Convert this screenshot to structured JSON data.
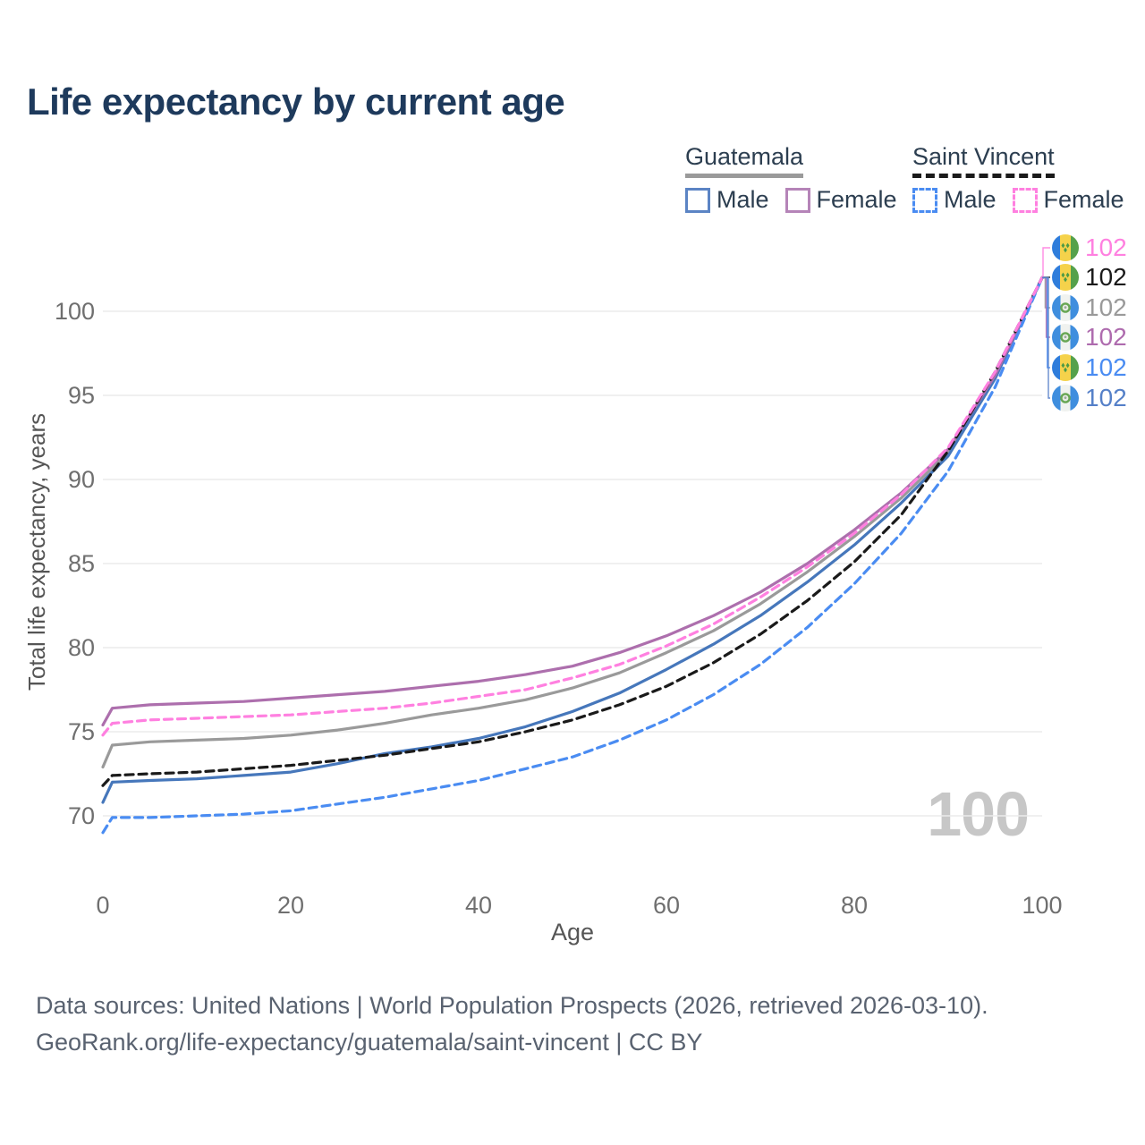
{
  "title": "Life expectancy by current age",
  "watermark": "100",
  "legend": {
    "groups": [
      {
        "name": "Guatemala",
        "line_style": "solid",
        "line_color": "#9a9a9a",
        "items": [
          {
            "label": "Male",
            "color": "#5b84c4",
            "dash": false
          },
          {
            "label": "Female",
            "color": "#b584b8",
            "dash": false
          }
        ]
      },
      {
        "name": "Saint Vincent",
        "line_style": "dashed",
        "line_color": "#1a1a1a",
        "items": [
          {
            "label": "Male",
            "color": "#4a8cf2",
            "dash": true
          },
          {
            "label": "Female",
            "color": "#ff80e0",
            "dash": true
          }
        ]
      }
    ]
  },
  "chart_data": {
    "type": "line",
    "title": "Life expectancy by current age",
    "xlabel": "Age",
    "ylabel": "Total life expectancy, years",
    "x_ticks": [
      0,
      20,
      40,
      60,
      80,
      100
    ],
    "y_ticks": [
      70,
      75,
      80,
      85,
      90,
      95,
      100
    ],
    "xlim": [
      0,
      100
    ],
    "ylim": [
      68.5,
      103
    ],
    "grid": "horizontal-only",
    "legend_position": "top-right",
    "x": [
      0,
      1,
      5,
      10,
      15,
      20,
      25,
      30,
      35,
      40,
      45,
      50,
      55,
      60,
      65,
      70,
      75,
      80,
      85,
      90,
      95,
      100
    ],
    "series": [
      {
        "name": "Guatemala",
        "country": "Guatemala",
        "group": "total",
        "color": "#9a9a9a",
        "dash": false,
        "values": [
          72.9,
          74.2,
          74.4,
          74.5,
          74.6,
          74.8,
          75.1,
          75.5,
          76.0,
          76.4,
          76.9,
          77.6,
          78.5,
          79.7,
          81.0,
          82.6,
          84.5,
          86.6,
          88.9,
          91.6,
          96.1,
          102
        ]
      },
      {
        "name": "Guatemala Male",
        "country": "Guatemala",
        "group": "male",
        "color": "#4677bb",
        "dash": false,
        "values": [
          70.8,
          72.0,
          72.1,
          72.2,
          72.4,
          72.6,
          73.1,
          73.7,
          74.1,
          74.6,
          75.3,
          76.2,
          77.3,
          78.7,
          80.2,
          81.9,
          83.9,
          86.1,
          88.6,
          91.4,
          96.0,
          102
        ]
      },
      {
        "name": "Guatemala Female",
        "country": "Guatemala",
        "group": "female",
        "color": "#ad6fad",
        "dash": false,
        "values": [
          75.4,
          76.4,
          76.6,
          76.7,
          76.8,
          77.0,
          77.2,
          77.4,
          77.7,
          78.0,
          78.4,
          78.9,
          79.7,
          80.7,
          81.9,
          83.3,
          85.0,
          87.0,
          89.2,
          91.8,
          96.2,
          102
        ]
      },
      {
        "name": "Saint Vincent",
        "country": "Saint Vincent",
        "group": "total",
        "color": "#1a1a1a",
        "dash": true,
        "values": [
          71.8,
          72.4,
          72.5,
          72.6,
          72.8,
          73.0,
          73.3,
          73.6,
          74.0,
          74.4,
          75.0,
          75.7,
          76.6,
          77.7,
          79.1,
          80.8,
          82.8,
          85.1,
          87.9,
          91.7,
          96.4,
          102
        ]
      },
      {
        "name": "Saint Vincent Male",
        "country": "Saint Vincent",
        "group": "male",
        "color": "#4a8cf2",
        "dash": true,
        "values": [
          69.0,
          69.9,
          69.9,
          70.0,
          70.1,
          70.3,
          70.7,
          71.1,
          71.6,
          72.1,
          72.8,
          73.5,
          74.5,
          75.7,
          77.2,
          79.0,
          81.2,
          83.8,
          86.8,
          90.5,
          95.5,
          102
        ]
      },
      {
        "name": "Saint Vincent Female",
        "country": "Saint Vincent",
        "group": "female",
        "color": "#ff80e0",
        "dash": true,
        "values": [
          74.8,
          75.5,
          75.7,
          75.8,
          75.9,
          76.0,
          76.2,
          76.4,
          76.7,
          77.1,
          77.5,
          78.2,
          79.0,
          80.1,
          81.4,
          83.0,
          84.8,
          86.8,
          89.1,
          91.9,
          96.4,
          102
        ]
      }
    ]
  },
  "end_labels": [
    {
      "series": "Saint Vincent Female",
      "flag": "saint-vincent",
      "value": "102",
      "color": "#ff80e0"
    },
    {
      "series": "Saint Vincent",
      "flag": "saint-vincent",
      "value": "102",
      "color": "#1a1a1a"
    },
    {
      "series": "Guatemala",
      "flag": "guatemala",
      "value": "102",
      "color": "#9a9a9a"
    },
    {
      "series": "Guatemala Female",
      "flag": "guatemala",
      "value": "102",
      "color": "#ae6bae"
    },
    {
      "series": "Saint Vincent Male",
      "flag": "saint-vincent",
      "value": "102",
      "color": "#4a8cf2"
    },
    {
      "series": "Guatemala Male",
      "flag": "guatemala",
      "value": "102",
      "color": "#5580c8"
    }
  ],
  "footer": {
    "line1": "Data sources: United Nations | World Population Prospects (2026, retrieved 2026-03-10).",
    "line2": "GeoRank.org/life-expectancy/guatemala/saint-vincent | CC BY"
  }
}
